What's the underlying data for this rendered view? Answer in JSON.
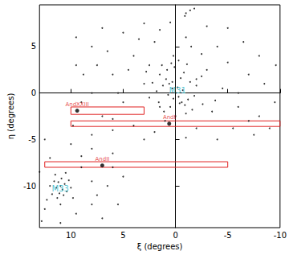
{
  "chart_data": {
    "type": "scatter",
    "x_label": "ξ (degrees)",
    "y_label": "η (degrees)",
    "xlim": [
      13,
      -10
    ],
    "ylim": [
      -14.5,
      9.5
    ],
    "xticks": [
      10,
      5,
      0,
      -5,
      -10
    ],
    "yticks": [
      5,
      0,
      -5,
      -10
    ],
    "grid": false,
    "color": "#000000",
    "marker": "circle",
    "x": [
      0,
      0.3,
      -0.3,
      0.6,
      -0.6,
      0.9,
      -0.9,
      0.2,
      -0.2,
      1.2,
      -1.2,
      0.5,
      -0.5,
      1.5,
      -1.4,
      1.8,
      -1.8,
      0.8,
      -0.8,
      0.1,
      1.1,
      -1.0,
      2.2,
      -2.0,
      0.4,
      -0.3,
      1.6,
      -1.6,
      2.5,
      -2.5,
      0.0,
      0.7,
      -0.7,
      0.3,
      -0.4,
      1.3,
      -1.1,
      2.8,
      -2.6,
      0.2,
      -1.0,
      -1.4,
      -1.8,
      -0.9,
      11,
      11.2,
      10.8,
      11.4,
      10.6,
      11.1,
      10.9,
      11.6,
      10.4,
      11.8,
      10.2,
      11.3,
      10.7,
      12.0,
      10.0,
      11.5,
      12.3,
      9.8,
      11.0,
      10.5,
      9.5,
      8,
      7,
      5,
      3,
      2,
      4,
      6,
      8,
      9,
      7,
      5,
      3,
      4.5,
      6.5,
      1.5,
      -1,
      -3,
      -4,
      -2.5,
      -5,
      -6.5,
      -7,
      -8.5,
      -9.5,
      -8,
      -6,
      -4.5,
      -3.5,
      -5.5,
      -7.5,
      -9,
      -3,
      -6,
      -2,
      2,
      4,
      6,
      8,
      9.8,
      1,
      -1,
      3,
      -4,
      2.5,
      -1.5,
      5.5,
      7.5,
      9.5,
      -8,
      -9.6,
      -5,
      0.5,
      6,
      -7,
      3.5,
      8.8,
      -2,
      1.5,
      -3.8,
      12.5,
      10,
      8,
      6,
      5,
      6.5,
      8,
      9,
      12,
      13,
      12.5,
      9.5,
      8,
      7,
      11,
      5.5,
      9,
      7.5,
      12.8,
      6
    ],
    "values": [
      0,
      0.5,
      -0.4,
      1,
      -1,
      1.5,
      -1.3,
      -0.6,
      0.6,
      0.8,
      -0.7,
      -1.5,
      1.6,
      2,
      1.2,
      0.2,
      -0.3,
      2.5,
      2.2,
      2.8,
      -2,
      -2.2,
      1.1,
      0.8,
      3.2,
      3.5,
      -1.0,
      -1.8,
      -0.5,
      1.8,
      -2.5,
      -0.2,
      0.3,
      1.2,
      -1.1,
      3.0,
      3.1,
      2.3,
      -1.2,
      4.0,
      8.6,
      8.9,
      9.1,
      8.3,
      -10,
      -9.6,
      -10.4,
      -10.2,
      -9.8,
      -10.8,
      -9.2,
      -9.5,
      -10.6,
      -10.9,
      -9.4,
      -11.3,
      -11.0,
      -10.0,
      -10.2,
      -8.8,
      -11.5,
      -11.3,
      -12.0,
      -8.6,
      3,
      5,
      7,
      6.5,
      7.5,
      5.5,
      4,
      2,
      0,
      -1,
      -2.5,
      -1,
      1,
      2.5,
      4.5,
      6.8,
      6,
      7.2,
      5,
      4.2,
      3.3,
      5.5,
      2,
      1,
      -1,
      -2.5,
      -1.5,
      0.5,
      -2,
      -3.8,
      -4.5,
      -3.8,
      2.5,
      0,
      -3.8,
      -4.2,
      -3.5,
      -4,
      -4.5,
      -3.5,
      -3,
      -4.8,
      -5,
      -5,
      3,
      5,
      0,
      3,
      6,
      4,
      3,
      7,
      7.6,
      -2.8,
      -3,
      5.8,
      2,
      1.5,
      -1.5,
      -0.8,
      -5,
      -5.5,
      -6,
      -6.5,
      -9,
      -10,
      -9.5,
      -8,
      -7,
      -8.5,
      -12.5,
      -13,
      -12,
      -13.5,
      -14,
      -12,
      -6.8,
      -11,
      -13.8,
      -8
    ],
    "dwarfs": {
      "labels": [
        "AndXXIII",
        "AndI",
        "AndII"
      ],
      "x": [
        9.4,
        0.6,
        7.0
      ],
      "values": [
        -1.9,
        -3.3,
        -7.8
      ],
      "color": "#000000",
      "label_color": "#e02020"
    },
    "regions": [
      {
        "xlim": [
          10,
          3
        ],
        "ylim": [
          -1.5,
          -2.3
        ]
      },
      {
        "xlim": [
          10,
          -10
        ],
        "ylim": [
          -3.0,
          -3.6
        ]
      },
      {
        "xlim": [
          12.5,
          -5
        ],
        "ylim": [
          -7.4,
          -8.0
        ]
      }
    ],
    "region_color": "#e02020",
    "annotations": [
      {
        "text": "M31",
        "x": -0.2,
        "y": 0.3,
        "color": "#29b6c8"
      },
      {
        "text": "M33",
        "x": 11.0,
        "y": -10.3,
        "color": "#29b6c8"
      }
    ]
  }
}
